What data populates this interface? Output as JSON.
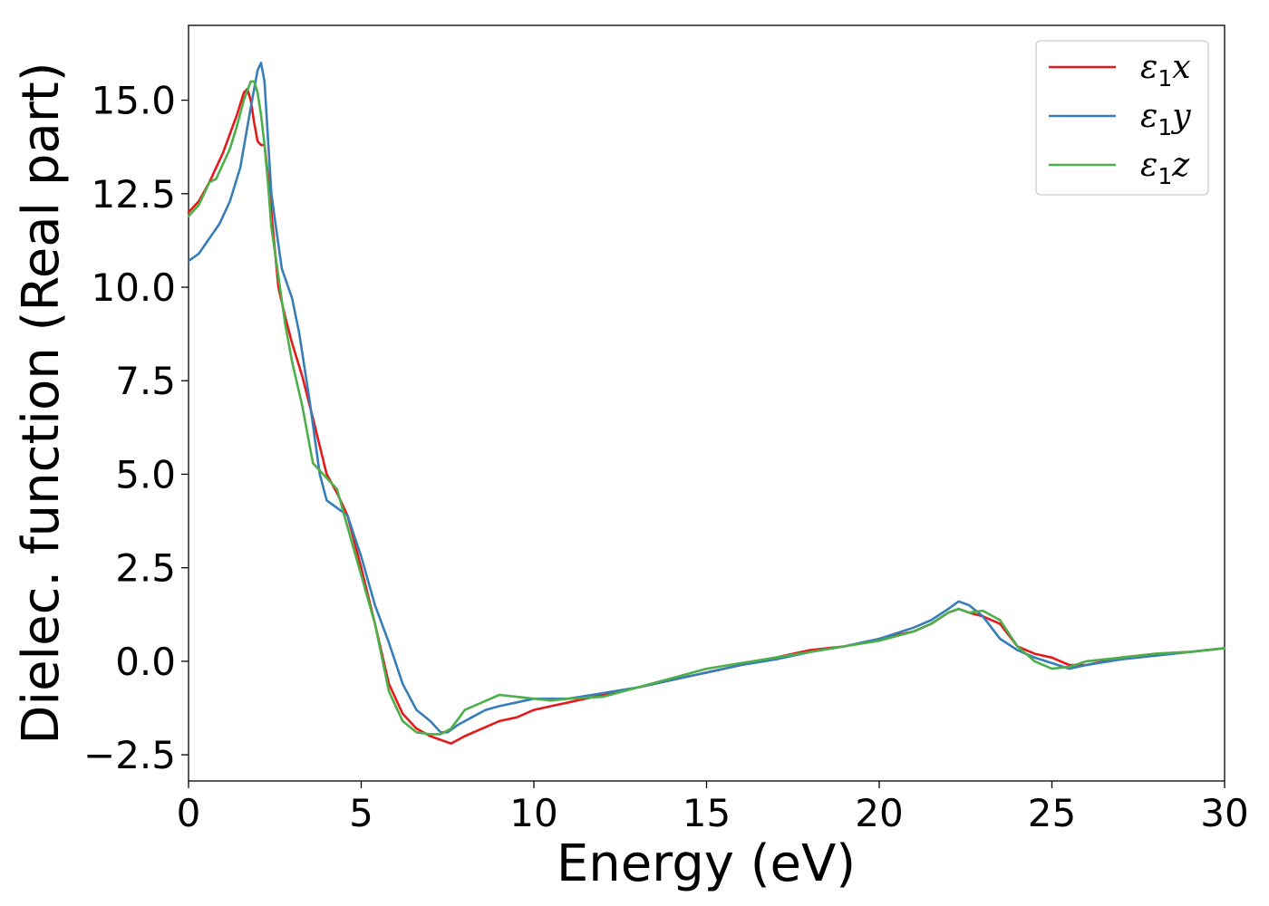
{
  "chart_data": {
    "type": "line",
    "title": "",
    "xlabel": "Energy (eV)",
    "ylabel": "Dielec. function (Real part)",
    "xlim": [
      0,
      30
    ],
    "ylim": [
      -3.2,
      17.0
    ],
    "xticks": [
      0,
      5,
      10,
      15,
      20,
      25,
      30
    ],
    "xtick_labels": [
      "0",
      "5",
      "10",
      "15",
      "20",
      "25",
      "30"
    ],
    "yticks": [
      -2.5,
      0.0,
      2.5,
      5.0,
      7.5,
      10.0,
      12.5,
      15.0
    ],
    "ytick_labels": [
      "−2.5",
      "0.0",
      "2.5",
      "5.0",
      "7.5",
      "10.0",
      "12.5",
      "15.0"
    ],
    "grid": false,
    "legend_position": "top-right",
    "series": [
      {
        "name": "ε1x",
        "symbol": "ε",
        "subscript": "1",
        "suffix": "x",
        "color": "#e41a1c",
        "x": [
          0,
          0.3,
          0.6,
          0.8,
          1.0,
          1.2,
          1.4,
          1.6,
          1.7,
          1.8,
          1.9,
          2.0,
          2.1,
          2.2,
          2.3,
          2.4,
          2.6,
          2.8,
          3.0,
          3.3,
          3.6,
          4.0,
          4.3,
          4.6,
          5.0,
          5.4,
          5.8,
          6.2,
          6.6,
          7.0,
          7.3,
          7.6,
          8.0,
          8.5,
          9.0,
          9.5,
          10.0,
          10.5,
          11.0,
          12.0,
          13.0,
          14.0,
          15.0,
          16.0,
          17.0,
          18.0,
          19.0,
          20.0,
          21.0,
          21.5,
          22.0,
          22.3,
          22.6,
          23.0,
          23.5,
          24.0,
          24.5,
          25.0,
          25.5,
          26.0,
          27.0,
          28.0,
          29.0,
          30.0
        ],
        "y": [
          12.0,
          12.3,
          12.8,
          13.2,
          13.6,
          14.1,
          14.6,
          15.2,
          15.3,
          15.0,
          14.4,
          13.9,
          13.8,
          13.8,
          13.0,
          12.0,
          10.0,
          9.2,
          8.5,
          7.6,
          6.5,
          5.0,
          4.5,
          3.9,
          2.5,
          1.0,
          -0.6,
          -1.4,
          -1.8,
          -2.0,
          -2.1,
          -2.2,
          -2.0,
          -1.8,
          -1.6,
          -1.5,
          -1.3,
          -1.2,
          -1.1,
          -0.9,
          -0.7,
          -0.5,
          -0.3,
          -0.1,
          0.1,
          0.3,
          0.4,
          0.6,
          0.8,
          1.0,
          1.3,
          1.4,
          1.3,
          1.2,
          1.0,
          0.4,
          0.2,
          0.1,
          -0.1,
          -0.1,
          0.1,
          0.2,
          0.25,
          0.35
        ]
      },
      {
        "name": "ε1y",
        "symbol": "ε",
        "subscript": "1",
        "suffix": "y",
        "color": "#377eb8",
        "x": [
          0,
          0.3,
          0.6,
          0.9,
          1.2,
          1.5,
          1.8,
          2.0,
          2.1,
          2.2,
          2.3,
          2.4,
          2.5,
          2.7,
          3.0,
          3.2,
          3.5,
          3.8,
          4.0,
          4.3,
          4.6,
          5.0,
          5.4,
          5.8,
          6.2,
          6.6,
          7.0,
          7.3,
          7.5,
          7.8,
          8.2,
          8.6,
          9.0,
          9.5,
          10.0,
          10.5,
          11.0,
          12.0,
          13.0,
          14.0,
          15.0,
          16.0,
          17.0,
          18.0,
          19.0,
          20.0,
          21.0,
          21.5,
          22.0,
          22.3,
          22.6,
          23.0,
          23.5,
          24.0,
          24.5,
          25.0,
          25.5,
          26.0,
          27.0,
          28.0,
          29.0,
          30.0
        ],
        "y": [
          10.7,
          10.9,
          11.3,
          11.7,
          12.3,
          13.2,
          14.8,
          15.8,
          16.0,
          15.5,
          14.0,
          12.5,
          11.8,
          10.5,
          9.7,
          8.8,
          7.0,
          5.0,
          4.3,
          4.1,
          3.9,
          2.8,
          1.5,
          0.5,
          -0.6,
          -1.3,
          -1.6,
          -1.9,
          -1.9,
          -1.7,
          -1.5,
          -1.3,
          -1.2,
          -1.1,
          -1.0,
          -1.0,
          -1.0,
          -0.85,
          -0.7,
          -0.5,
          -0.3,
          -0.1,
          0.05,
          0.25,
          0.4,
          0.6,
          0.9,
          1.1,
          1.4,
          1.6,
          1.5,
          1.2,
          0.6,
          0.3,
          0.1,
          -0.05,
          -0.2,
          -0.1,
          0.05,
          0.15,
          0.25,
          0.35
        ]
      },
      {
        "name": "ε1z",
        "symbol": "ε",
        "subscript": "1",
        "suffix": "z",
        "color": "#4daf4a",
        "x": [
          0,
          0.3,
          0.6,
          0.8,
          1.0,
          1.2,
          1.4,
          1.6,
          1.8,
          1.9,
          2.0,
          2.1,
          2.2,
          2.3,
          2.4,
          2.6,
          2.8,
          3.0,
          3.3,
          3.6,
          4.0,
          4.3,
          4.6,
          5.0,
          5.4,
          5.8,
          6.2,
          6.6,
          7.0,
          7.3,
          7.6,
          8.0,
          8.5,
          9.0,
          9.5,
          10.0,
          10.5,
          11.0,
          12.0,
          13.0,
          14.0,
          15.0,
          16.0,
          17.0,
          18.0,
          19.0,
          20.0,
          21.0,
          21.5,
          22.0,
          22.3,
          22.6,
          23.0,
          23.5,
          24.0,
          24.5,
          25.0,
          25.5,
          26.0,
          26.5,
          27.0,
          28.0,
          29.0,
          30.0
        ],
        "y": [
          11.9,
          12.2,
          12.8,
          12.9,
          13.3,
          13.7,
          14.3,
          15.0,
          15.5,
          15.5,
          15.2,
          14.6,
          13.8,
          12.8,
          11.6,
          10.3,
          9.0,
          8.0,
          6.8,
          5.3,
          4.9,
          4.6,
          3.6,
          2.3,
          1.0,
          -0.8,
          -1.6,
          -1.9,
          -1.95,
          -1.95,
          -1.8,
          -1.3,
          -1.1,
          -0.9,
          -0.95,
          -1.0,
          -1.05,
          -1.0,
          -0.95,
          -0.7,
          -0.45,
          -0.2,
          -0.05,
          0.1,
          0.25,
          0.4,
          0.55,
          0.8,
          1.0,
          1.3,
          1.4,
          1.3,
          1.35,
          1.1,
          0.4,
          0.0,
          -0.2,
          -0.15,
          0.0,
          0.05,
          0.1,
          0.2,
          0.25,
          0.35
        ]
      }
    ]
  }
}
